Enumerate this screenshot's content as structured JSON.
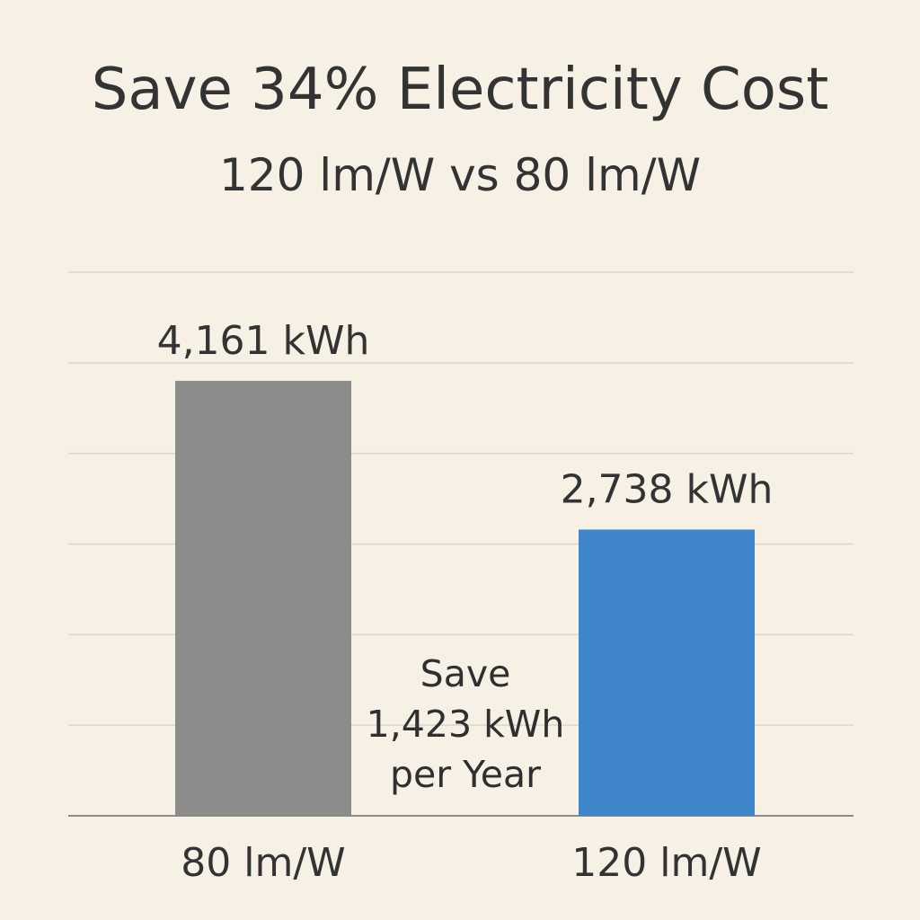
{
  "chart_data": {
    "type": "bar",
    "title": "Save 34% Electricity Cost",
    "subtitle": "120 lm/W vs 80 lm/W",
    "categories": [
      "80 lm/W",
      "120 lm/W"
    ],
    "values": [
      4161,
      2738
    ],
    "value_labels": [
      "4,161 kWh",
      "2,738 kWh"
    ],
    "unit": "kWh",
    "colors": [
      "#8c8c8b",
      "#3f87ca"
    ],
    "grid": true,
    "ylim": [
      0,
      5200
    ],
    "annotation": [
      "Save",
      "1,423 kWh",
      "per Year"
    ]
  }
}
